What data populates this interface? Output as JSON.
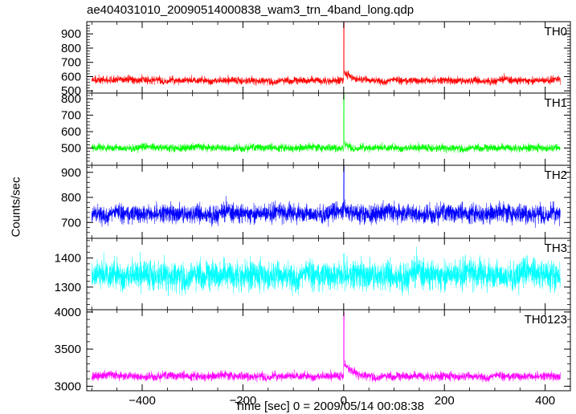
{
  "chart_data": {
    "type": "line",
    "title": "ae404031010_20090514000838_wam3_trn_4band_long.qdp",
    "ylabel": "Counts/sec",
    "xlabel": "Time [sec] 0 = 2009/05/14 00:08:38",
    "xlim": [
      -510,
      450
    ],
    "x_ticks": [
      -400,
      -200,
      0,
      200,
      400
    ],
    "x_tick_labels": [
      "−400",
      "−200",
      "0",
      "200",
      "400"
    ],
    "x_data_range": [
      -500,
      430
    ],
    "grid": false,
    "panels": [
      {
        "series_name": "TH0",
        "color": "#ff0000",
        "ylim": [
          490,
          980
        ],
        "yticks": [
          500,
          600,
          700,
          800,
          900
        ],
        "baseline": 575,
        "noise": 18,
        "slow": 8,
        "peak": 980,
        "tail_amp": 60,
        "tail_decay": 18
      },
      {
        "series_name": "TH1",
        "color": "#00ff00",
        "ylim": [
          400,
          830
        ],
        "yticks": [
          500,
          600,
          700,
          800
        ],
        "baseline": 503,
        "noise": 16,
        "slow": 6,
        "peak": 830,
        "tail_amp": 40,
        "tail_decay": 6
      },
      {
        "series_name": "TH2",
        "color": "#0000ff",
        "ylim": [
          640,
          925
        ],
        "yticks": [
          700,
          800,
          900
        ],
        "baseline": 738,
        "noise": 26,
        "slow": 8,
        "peak": 925,
        "tail_amp": 25,
        "tail_decay": 6
      },
      {
        "series_name": "TH3",
        "color": "#00ffff",
        "ylim": [
          1225,
          1465
        ],
        "yticks": [
          1300,
          1400
        ],
        "baseline": 1345,
        "noise": 35,
        "slow": 12,
        "peak": 1415,
        "tail_amp": 0,
        "tail_decay": 6
      },
      {
        "series_name": "TH0123",
        "color": "#ff00ff",
        "ylim": [
          2950,
          4020
        ],
        "yticks": [
          3000,
          3500,
          4000
        ],
        "baseline": 3140,
        "noise": 40,
        "slow": 18,
        "peak": 4000,
        "tail_amp": 200,
        "tail_decay": 16
      }
    ]
  }
}
